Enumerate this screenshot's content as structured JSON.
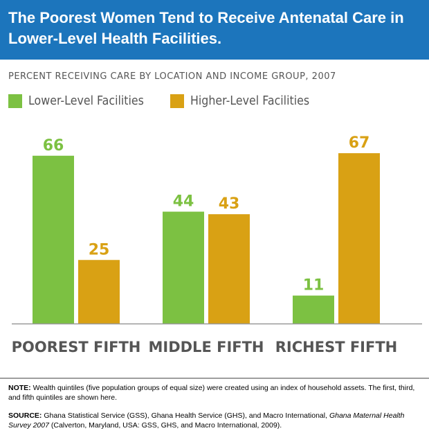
{
  "colors": {
    "header_bg": "#1c75bc",
    "lower": "#7cc142",
    "higher": "#d9a114",
    "axis": "#999999",
    "label_gray": "#555555"
  },
  "header": {
    "title": "The Poorest Women Tend to Receive Antenatal Care in Lower-Level Health Facilities."
  },
  "subtitle": "PERCENT RECEIVING CARE BY LOCATION AND INCOME GROUP, 2007",
  "chart_data": {
    "type": "bar",
    "title": "The Poorest Women Tend to Receive Antenatal Care in Lower-Level Health Facilities.",
    "subtitle": "PERCENT RECEIVING CARE BY LOCATION AND INCOME GROUP, 2007",
    "categories": [
      "POOREST FIFTH",
      "MIDDLE FIFTH",
      "RICHEST FIFTH"
    ],
    "series": [
      {
        "name": "Lower-Level Facilities",
        "values": [
          66,
          44,
          11
        ],
        "color": "#7cc142"
      },
      {
        "name": "Higher-Level Facilities",
        "values": [
          25,
          43,
          67
        ],
        "color": "#d9a114"
      }
    ],
    "ylim": [
      0,
      70
    ],
    "grid": false,
    "legend": "top-left"
  },
  "footer": {
    "note_label": "NOTE:",
    "note_text": " Wealth quintiles (five population groups of equal size) were created using an index of household assets. The first, third, and fifth quintiles are shown here.",
    "source_label": "SOURCE:",
    "source_text_1": " Ghana Statistical Service (GSS), Ghana Health Service (GHS), and Macro International, ",
    "source_italic": "Ghana Maternal Health Survey 2007",
    "source_text_2": " (Calverton, Maryland, USA: GSS, GHS, and Macro International, 2009)."
  }
}
